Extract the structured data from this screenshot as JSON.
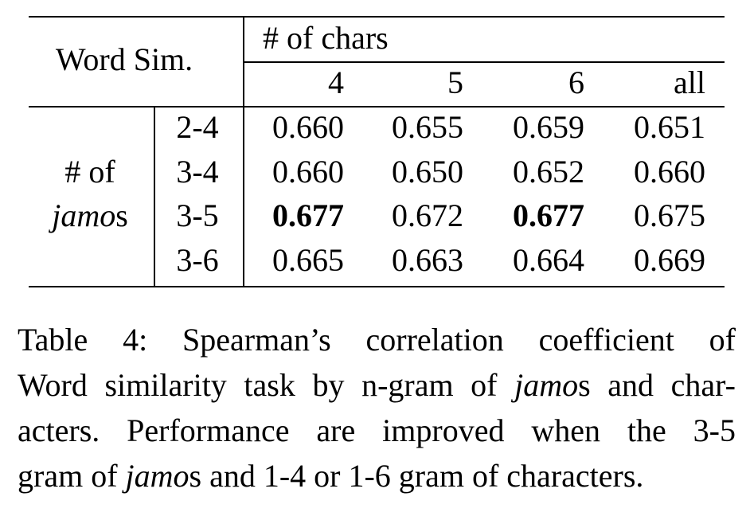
{
  "table": {
    "corner_label": "Word Sim.",
    "col_group_label": "# of chars",
    "col_headers": [
      "4",
      "5",
      "6",
      "all"
    ],
    "row_group_label_line1": "# of",
    "row_group_label_italic": "jamo",
    "row_group_label_suffix": "s",
    "rows": [
      {
        "label": "2-4",
        "values": [
          "0.660",
          "0.655",
          "0.659",
          "0.651"
        ],
        "bold": [
          false,
          false,
          false,
          false
        ]
      },
      {
        "label": "3-4",
        "values": [
          "0.660",
          "0.650",
          "0.652",
          "0.660"
        ],
        "bold": [
          false,
          false,
          false,
          false
        ]
      },
      {
        "label": "3-5",
        "values": [
          "0.677",
          "0.672",
          "0.677",
          "0.675"
        ],
        "bold": [
          true,
          false,
          true,
          false
        ]
      },
      {
        "label": "3-6",
        "values": [
          "0.665",
          "0.663",
          "0.664",
          "0.669"
        ],
        "bold": [
          false,
          false,
          false,
          false
        ]
      }
    ]
  },
  "caption": {
    "line1": "Table 4: Spearman’s correlation coefficient of",
    "line2_pre": "Word similarity task by n-gram of ",
    "line2_italic": "jamo",
    "line2_post": "s and char-",
    "line3": "acters. Performance are improved when the 3-5",
    "line4_pre": "gram of ",
    "line4_italic": "jamo",
    "line4_post": "s and 1-4 or 1-6 gram of characters."
  }
}
